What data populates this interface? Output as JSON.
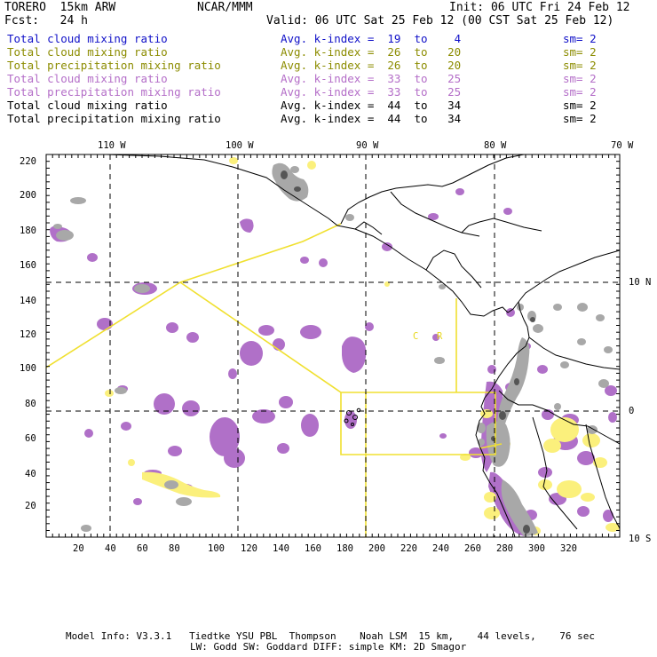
{
  "header": {
    "model": "TORERO  15km ARW",
    "org": "NCAR/MMM",
    "init": "Init: 06 UTC Fri 24 Feb 12",
    "fcst": "Fcst:   24 h",
    "valid": "Valid: 06 UTC Sat 25 Feb 12 (00 CST Sat 25 Feb 12)"
  },
  "legend": [
    {
      "field": "Total cloud mixing ratio",
      "avg": "Avg. k-index =  19  to    4",
      "sm": "sm= 2",
      "color": "#1010c8"
    },
    {
      "field": "Total cloud mixing ratio",
      "avg": "Avg. k-index =  26  to   20",
      "sm": "sm= 2",
      "color": "#8c8c00"
    },
    {
      "field": "Total precipitation mixing ratio",
      "avg": "Avg. k-index =  26  to   20",
      "sm": "sm= 2",
      "color": "#8c8c00"
    },
    {
      "field": "Total cloud mixing ratio",
      "avg": "Avg. k-index =  33  to   25",
      "sm": "sm= 2",
      "color": "#b46ec8"
    },
    {
      "field": "Total precipitation mixing ratio",
      "avg": "Avg. k-index =  33  to   25",
      "sm": "sm= 2",
      "color": "#b46ec8"
    },
    {
      "field": "Total cloud mixing ratio",
      "avg": "Avg. k-index =  44  to   34",
      "sm": "sm= 2",
      "color": "#000000"
    },
    {
      "field": "Total precipitation mixing ratio",
      "avg": "Avg. k-index =  44  to   34",
      "sm": "sm= 2",
      "color": "#000000"
    }
  ],
  "map": {
    "lon_labels": [
      "110 W",
      "100 W",
      "90 W",
      "80 W",
      "70 W"
    ],
    "lat_labels": [
      "10 N",
      "0",
      "10 S"
    ],
    "x_ticks": [
      "20",
      "40",
      "60",
      "80",
      "100",
      "120",
      "140",
      "160",
      "180",
      "200",
      "220",
      "240",
      "260",
      "280",
      "300",
      "320"
    ],
    "y_ticks": [
      "20",
      "40",
      "60",
      "80",
      "100",
      "120",
      "140",
      "160",
      "180",
      "200",
      "220"
    ],
    "box_labels": [
      "C",
      "R"
    ],
    "colors": {
      "cloud_gray": "#a8a8a8",
      "dark_gray": "#555555",
      "purple": "#b070c8",
      "yellow": "#fbf07c",
      "outline": "#f0e030",
      "coast": "#000000"
    }
  },
  "footer": {
    "line1": "Model Info: V3.3.1   Tiedtke YSU PBL  Thompson    Noah LSM  15 km,    44 levels,    76 sec",
    "line2": "LW: Godd SW: Goddard DIFF: simple KM: 2D Smagor"
  }
}
